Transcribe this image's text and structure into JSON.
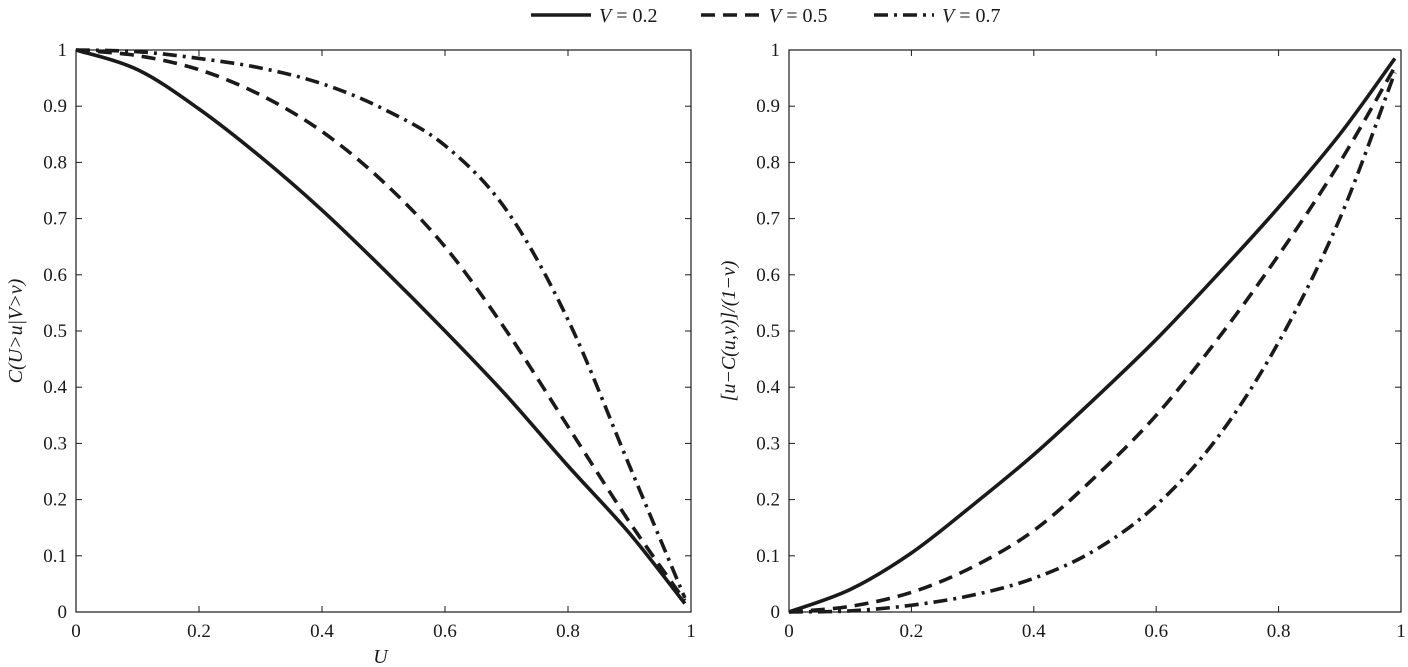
{
  "chart_data": [
    {
      "type": "line",
      "title": "",
      "xlabel": "U",
      "ylabel": "C(U>u|V>v)",
      "xlim": [
        0,
        1
      ],
      "ylim": [
        0,
        1
      ],
      "xticks": [
        "0",
        "0.2",
        "0.4",
        "0.6",
        "0.8",
        "1"
      ],
      "yticks": [
        "0",
        "0.1",
        "0.2",
        "0.3",
        "0.4",
        "0.5",
        "0.6",
        "0.7",
        "0.8",
        "0.9",
        "1"
      ],
      "grid": false,
      "x": [
        0,
        0.1,
        0.2,
        0.3,
        0.4,
        0.5,
        0.6,
        0.7,
        0.8,
        0.9,
        0.99
      ],
      "series": [
        {
          "name": "V = 0.2",
          "style": "solid",
          "values": [
            1.0,
            0.965,
            0.895,
            0.81,
            0.715,
            0.61,
            0.5,
            0.385,
            0.26,
            0.14,
            0.015
          ]
        },
        {
          "name": "V = 0.5",
          "style": "dashed",
          "values": [
            1.0,
            0.99,
            0.965,
            0.92,
            0.855,
            0.765,
            0.65,
            0.5,
            0.33,
            0.16,
            0.02
          ]
        },
        {
          "name": "V = 0.7",
          "style": "dashdot",
          "values": [
            1.0,
            0.997,
            0.985,
            0.968,
            0.94,
            0.895,
            0.83,
            0.715,
            0.52,
            0.26,
            0.025
          ]
        }
      ]
    },
    {
      "type": "line",
      "title": "",
      "xlabel": "",
      "ylabel": "[u−C(u,v)]/(1−v)",
      "xlim": [
        0,
        1
      ],
      "ylim": [
        0,
        1
      ],
      "xticks": [
        "0",
        "0.2",
        "0.4",
        "0.6",
        "0.8",
        "1"
      ],
      "yticks": [
        "0",
        "0.1",
        "0.2",
        "0.3",
        "0.4",
        "0.5",
        "0.6",
        "0.7",
        "0.8",
        "0.9",
        "1"
      ],
      "grid": false,
      "x": [
        0,
        0.1,
        0.2,
        0.3,
        0.4,
        0.5,
        0.6,
        0.7,
        0.8,
        0.9,
        0.99
      ],
      "series": [
        {
          "name": "V = 0.2",
          "style": "solid",
          "values": [
            0.0,
            0.04,
            0.105,
            0.19,
            0.28,
            0.38,
            0.485,
            0.6,
            0.72,
            0.85,
            0.985
          ]
        },
        {
          "name": "V = 0.5",
          "style": "dashed",
          "values": [
            0.0,
            0.01,
            0.035,
            0.08,
            0.145,
            0.24,
            0.35,
            0.485,
            0.635,
            0.8,
            0.97
          ]
        },
        {
          "name": "V = 0.7",
          "style": "dashdot",
          "values": [
            0.0,
            0.002,
            0.012,
            0.03,
            0.06,
            0.11,
            0.19,
            0.31,
            0.48,
            0.7,
            0.96
          ]
        }
      ]
    }
  ],
  "legend": {
    "placement": "top-center",
    "entries": [
      {
        "var": "V",
        "text": " = 0.2",
        "style": "solid"
      },
      {
        "var": "V",
        "text": " = 0.5",
        "style": "dashed"
      },
      {
        "var": "V",
        "text": " = 0.7",
        "style": "dashdot"
      }
    ]
  },
  "colors": {
    "line": "#1a1a1a",
    "axis": "#1a1a1a",
    "background": "#ffffff"
  }
}
